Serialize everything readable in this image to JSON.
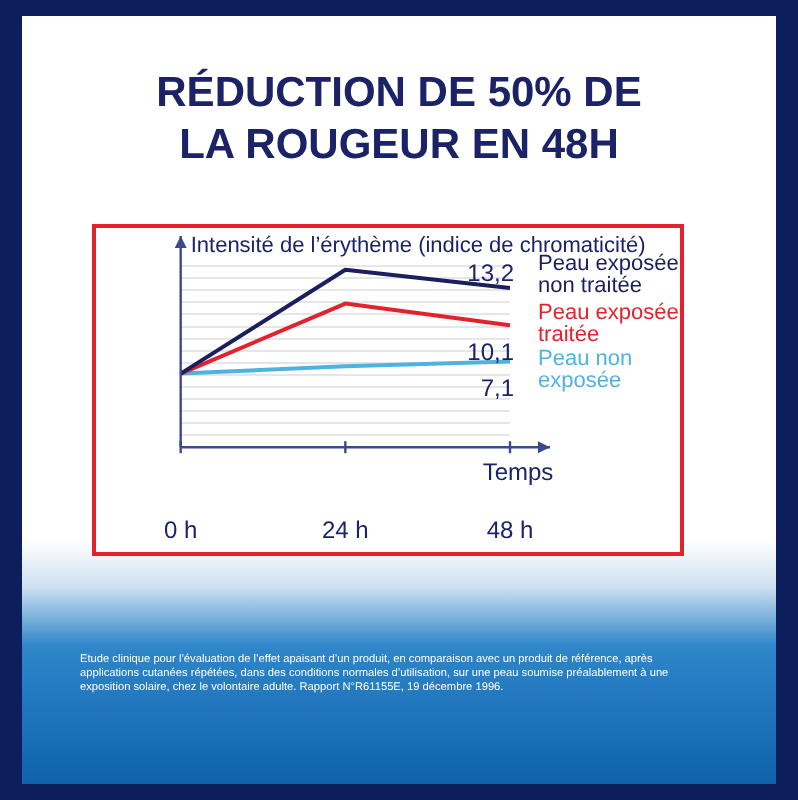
{
  "chart_data": {
    "type": "line",
    "title": "RÉDUCTION DE 50% DE LA ROUGEUR EN 48H",
    "ylabel": "Intensité de l’érythème (indice de chromaticité)",
    "xlabel": "Temps",
    "categories": [
      "0 h",
      "24 h",
      "48 h"
    ],
    "series": [
      {
        "name": "Peau exposée non traitée",
        "color": "#1b1f5c",
        "values": [
          6.1,
          14.7,
          13.2
        ],
        "value_labels": [
          null,
          null,
          "13,2"
        ]
      },
      {
        "name": "Peau exposée traitée",
        "color": "#e3222d",
        "values": [
          6.1,
          11.9,
          10.1
        ],
        "value_labels": [
          null,
          null,
          "10,1"
        ]
      },
      {
        "name": "Peau non exposée",
        "color": "#4fb3e0",
        "values": [
          6.1,
          6.7,
          7.1
        ],
        "value_labels": [
          null,
          null,
          "7,1"
        ]
      }
    ],
    "ylim": [
      0,
      17.5
    ],
    "yticks": [
      {
        "value": 1,
        "label": null
      },
      {
        "value": 2,
        "label": null
      },
      {
        "value": 3,
        "label": null
      },
      {
        "value": 4,
        "label": null
      },
      {
        "value": 5,
        "label": null
      },
      {
        "value": 6,
        "label": null
      },
      {
        "value": 7,
        "label": null
      },
      {
        "value": 8,
        "label": null
      },
      {
        "value": 9,
        "label": null
      },
      {
        "value": 10,
        "label": null
      },
      {
        "value": 11,
        "label": null
      },
      {
        "value": 12,
        "label": null
      },
      {
        "value": 13,
        "label": null
      },
      {
        "value": 14,
        "label": null
      },
      {
        "value": 15,
        "label": null
      }
    ],
    "tick_labels": "x",
    "grid": "y",
    "marker": "none",
    "line_style": "solid",
    "legend": false,
    "annotations": [
      "Etude clinique pour l’évaluation de l’effet apaisant d’un produit, en comparaison avec un produit de référence, après applications cutanées répétées, dans des conditions normales d’utilisation, sur une peau soumise préalablement à une exposition solaire, chez le volontaire adulte. Rapport N°R61155E, 19 décembre 1996."
    ]
  }
}
